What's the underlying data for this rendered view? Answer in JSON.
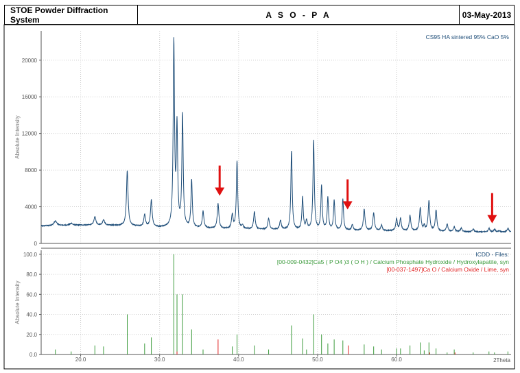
{
  "header": {
    "left": "STOE Powder Diffraction System",
    "center": "A S O - P A",
    "right": "03-May-2013"
  },
  "colors": {
    "trace": "#1f4e79",
    "pattern_a": "#3a9a3a",
    "pattern_b": "#e02020",
    "arrow": "#e01010",
    "grid": "#cccccc"
  },
  "chart_data": [
    {
      "type": "line",
      "title": "",
      "legend": "CS95 HA sintered 95% CaO 5%",
      "legend_position": "top-right",
      "ylabel": "Absolute Intensity",
      "xlim": [
        15,
        74.5
      ],
      "ylim": [
        0,
        23200
      ],
      "yticks": [
        0,
        4000,
        8000,
        12000,
        16000,
        20000
      ],
      "grid": true,
      "baseline": [
        [
          15,
          1900
        ],
        [
          17,
          1950
        ],
        [
          20,
          2000
        ],
        [
          25,
          1950
        ],
        [
          30,
          1750
        ],
        [
          35,
          1650
        ],
        [
          40,
          1550
        ],
        [
          45,
          1500
        ],
        [
          50,
          1450
        ],
        [
          55,
          1400
        ],
        [
          60,
          1350
        ],
        [
          65,
          1300
        ],
        [
          70,
          1250
        ],
        [
          74.5,
          1250
        ]
      ],
      "peaks": [
        {
          "x": 16.8,
          "h": 500,
          "w": 0.22
        },
        {
          "x": 18.8,
          "h": 200,
          "w": 0.2
        },
        {
          "x": 21.8,
          "h": 900,
          "w": 0.15
        },
        {
          "x": 22.9,
          "h": 600,
          "w": 0.15
        },
        {
          "x": 25.9,
          "h": 6000,
          "w": 0.12
        },
        {
          "x": 28.1,
          "h": 1300,
          "w": 0.12
        },
        {
          "x": 28.95,
          "h": 2900,
          "w": 0.12
        },
        {
          "x": 31.8,
          "h": 20000,
          "w": 0.1
        },
        {
          "x": 32.2,
          "h": 10700,
          "w": 0.1
        },
        {
          "x": 32.9,
          "h": 12200,
          "w": 0.1
        },
        {
          "x": 34.05,
          "h": 5200,
          "w": 0.1
        },
        {
          "x": 35.5,
          "h": 1800,
          "w": 0.12
        },
        {
          "x": 37.4,
          "h": 2700,
          "w": 0.12
        },
        {
          "x": 39.2,
          "h": 1500,
          "w": 0.12
        },
        {
          "x": 39.8,
          "h": 7400,
          "w": 0.1
        },
        {
          "x": 40.5,
          "h": 400,
          "w": 0.12
        },
        {
          "x": 42.0,
          "h": 1900,
          "w": 0.12
        },
        {
          "x": 43.8,
          "h": 1200,
          "w": 0.12
        },
        {
          "x": 45.3,
          "h": 1000,
          "w": 0.12
        },
        {
          "x": 46.7,
          "h": 8600,
          "w": 0.1
        },
        {
          "x": 48.1,
          "h": 3500,
          "w": 0.1
        },
        {
          "x": 48.6,
          "h": 900,
          "w": 0.12
        },
        {
          "x": 49.5,
          "h": 9700,
          "w": 0.1
        },
        {
          "x": 50.5,
          "h": 4800,
          "w": 0.1
        },
        {
          "x": 51.3,
          "h": 3500,
          "w": 0.1
        },
        {
          "x": 52.1,
          "h": 3200,
          "w": 0.1
        },
        {
          "x": 53.2,
          "h": 3400,
          "w": 0.1
        },
        {
          "x": 54.4,
          "h": 600,
          "w": 0.12
        },
        {
          "x": 55.9,
          "h": 2300,
          "w": 0.12
        },
        {
          "x": 57.1,
          "h": 1900,
          "w": 0.12
        },
        {
          "x": 58.1,
          "h": 600,
          "w": 0.12
        },
        {
          "x": 60.0,
          "h": 1300,
          "w": 0.12
        },
        {
          "x": 60.5,
          "h": 1300,
          "w": 0.12
        },
        {
          "x": 61.7,
          "h": 1700,
          "w": 0.12
        },
        {
          "x": 63.0,
          "h": 2500,
          "w": 0.12
        },
        {
          "x": 63.5,
          "h": 500,
          "w": 0.12
        },
        {
          "x": 64.1,
          "h": 3300,
          "w": 0.12
        },
        {
          "x": 65.0,
          "h": 2300,
          "w": 0.12
        },
        {
          "x": 66.4,
          "h": 800,
          "w": 0.12
        },
        {
          "x": 67.3,
          "h": 500,
          "w": 0.12
        },
        {
          "x": 68.2,
          "h": 400,
          "w": 0.12
        },
        {
          "x": 69.7,
          "h": 300,
          "w": 0.12
        },
        {
          "x": 71.7,
          "h": 400,
          "w": 0.12
        },
        {
          "x": 72.4,
          "h": 300,
          "w": 0.12
        },
        {
          "x": 73.0,
          "h": 100,
          "w": 0.12
        },
        {
          "x": 74.1,
          "h": 400,
          "w": 0.12
        }
      ],
      "arrows": [
        37.6,
        53.8,
        72.1
      ],
      "arrow_tip_y": [
        5200,
        3700,
        2200
      ]
    },
    {
      "type": "bar",
      "title": "",
      "ylabel": "Absolute Intensity",
      "xlabel": "2Theta",
      "xlim": [
        15,
        74.5
      ],
      "ylim": [
        0,
        104
      ],
      "yticks": [
        0.0,
        20.0,
        40.0,
        60.0,
        80.0,
        100.0
      ],
      "ytick_labels": [
        "0.0",
        "20.0",
        "40.0",
        "60.0",
        "80.0",
        "100.0"
      ],
      "xticks": [
        20,
        30,
        40,
        50,
        60
      ],
      "xtick_labels": [
        "20.0",
        "30.0",
        "40.0",
        "50.0",
        "60.0"
      ],
      "grid": true,
      "legend_title": "ICDD - Files:",
      "legend_position": "top-right",
      "series": [
        {
          "name": "[00-009-0432]Ca5 ( P O4 )3 ( O H ) / Calcium Phosphate Hydroxide / Hydroxylapatite, syn",
          "x": [
            16.8,
            18.8,
            21.8,
            22.9,
            25.9,
            28.1,
            28.95,
            31.8,
            32.2,
            32.9,
            34.05,
            35.5,
            39.2,
            39.8,
            42.0,
            43.8,
            46.7,
            48.1,
            48.6,
            49.5,
            50.5,
            51.3,
            52.1,
            53.2,
            55.9,
            57.1,
            58.1,
            60.0,
            60.5,
            61.7,
            63.0,
            63.5,
            64.1,
            65.0,
            66.4,
            67.3,
            69.7,
            71.7,
            72.4,
            74.1
          ],
          "values": [
            5,
            3,
            9,
            8,
            40,
            11,
            17,
            100,
            60,
            60,
            25,
            5,
            8,
            20,
            9,
            5,
            29,
            16,
            5,
            40,
            20,
            11,
            15,
            14,
            10,
            8,
            5,
            6,
            6,
            9,
            12,
            4,
            12,
            6,
            2,
            5,
            2,
            3,
            2,
            3
          ]
        },
        {
          "name": "[00-037-1497]Ca O / Calcium Oxide / Lime, syn",
          "x": [
            32.2,
            37.4,
            53.9,
            64.2,
            67.4
          ],
          "values": [
            3,
            15,
            9,
            2,
            2
          ]
        }
      ]
    }
  ]
}
